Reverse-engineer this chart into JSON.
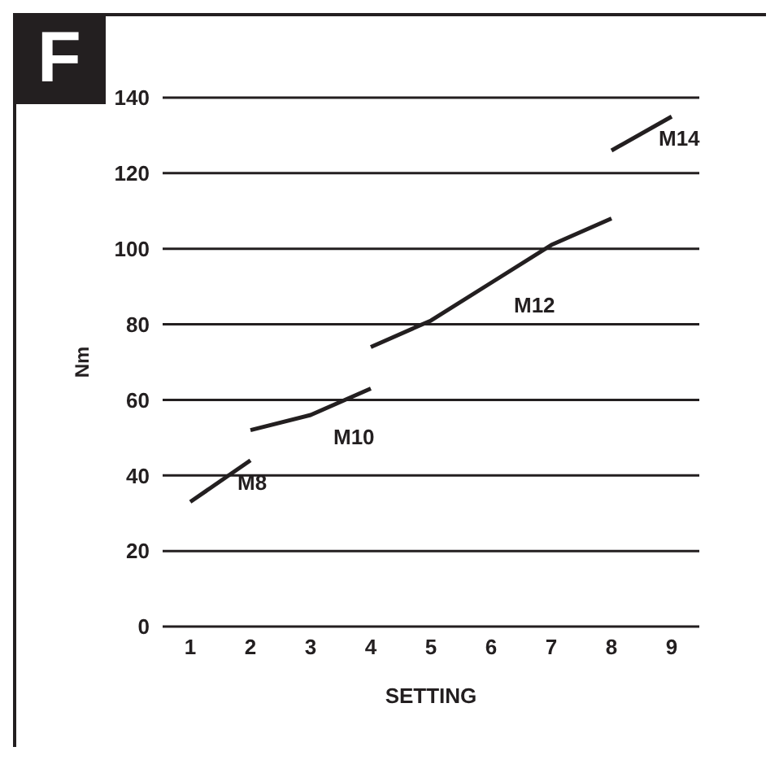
{
  "chart_data": {
    "type": "line",
    "title": "F",
    "xlabel": "SETTING",
    "ylabel": "Nm",
    "categories": [
      "1",
      "2",
      "3",
      "4",
      "5",
      "6",
      "7",
      "8",
      "9"
    ],
    "series": [
      {
        "name": "M8",
        "color": "#231f20",
        "values": [
          33,
          44,
          null,
          null,
          null,
          null,
          null,
          null,
          null
        ]
      },
      {
        "name": "M10",
        "color": "#231f20",
        "values": [
          null,
          52,
          56,
          63,
          null,
          null,
          null,
          null,
          null
        ]
      },
      {
        "name": "M12",
        "color": "#231f20",
        "values": [
          null,
          null,
          null,
          74,
          81,
          91,
          101,
          108,
          null
        ]
      },
      {
        "name": "M14",
        "color": "#231f20",
        "values": [
          null,
          null,
          null,
          null,
          null,
          null,
          null,
          126,
          135
        ]
      }
    ],
    "ylim": [
      0,
      140
    ],
    "yticks": [
      0,
      20,
      40,
      60,
      80,
      100,
      120,
      140
    ],
    "grid": "y",
    "legend": false,
    "marker": "none",
    "line_style": "solid"
  }
}
